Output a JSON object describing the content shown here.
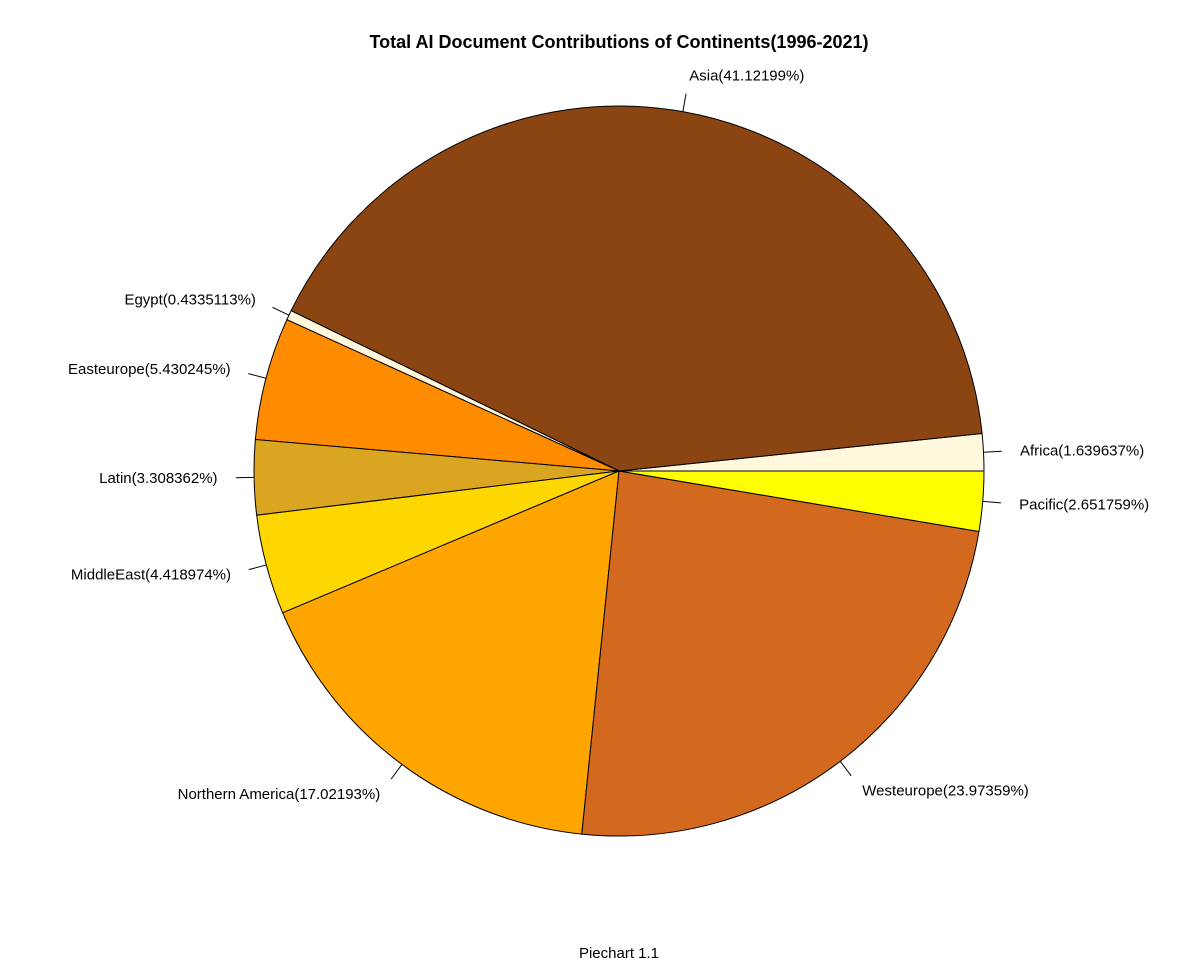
{
  "chart_data": {
    "type": "pie",
    "title": "Total AI Document Contributions of Continents(1996-2021)",
    "caption": "Piechart 1.1",
    "direction": "counterclockwise",
    "start_angle_deg": 0,
    "slices": [
      {
        "label": "Africa(1.639637%)",
        "value": 1.639637,
        "color": "#FFF8DC"
      },
      {
        "label": "Asia(41.12199%)",
        "value": 41.12199,
        "color": "#8B4513"
      },
      {
        "label": "Egypt(0.4335113%)",
        "value": 0.4335113,
        "color": "#FFF8DC"
      },
      {
        "label": "Easteurope(5.430245%)",
        "value": 5.430245,
        "color": "#FF8C00"
      },
      {
        "label": "Latin(3.308362%)",
        "value": 3.308362,
        "color": "#DAA520"
      },
      {
        "label": "MiddleEast(4.418974%)",
        "value": 4.418974,
        "color": "#FFD700"
      },
      {
        "label": "Northern America(17.02193%)",
        "value": 17.02193,
        "color": "#FFA500"
      },
      {
        "label": "Westeurope(23.97359%)",
        "value": 23.97359,
        "color": "#D2691E"
      },
      {
        "label": "Pacific(2.651759%)",
        "value": 2.651759,
        "color": "#FFFF00"
      }
    ]
  }
}
